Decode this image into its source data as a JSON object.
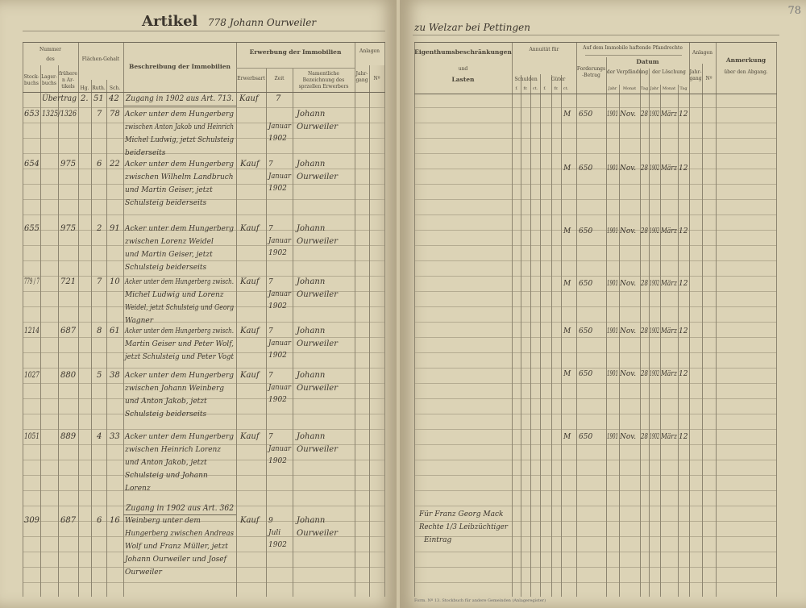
{
  "left_page": {
    "title_printed": "Artikel",
    "title_handwritten": "778 Johann Ourweiler",
    "headers": {
      "nummer": "Nummer",
      "des": "des",
      "stockbuchs": "Stock-buchs",
      "lagerbuchs": "Lager-buchs",
      "frueheren": "früheren Ar-tikels",
      "flaechen": "Flächen-Gehalt",
      "ha": "Hg.",
      "a": "Ruth.",
      "m": "Sch.",
      "beschreibung": "Beschreibung der Immobilien",
      "erwerbung": "Erwerbung der Immobilien",
      "erwerbsart": "Erwerbsart",
      "zeit": "Zeit",
      "namentliche": "Namentliche Bezeichnung des sprzellen Erwerbers",
      "anlagen": "Anlagen",
      "jahrgang": "Jahr-gang",
      "nr": "Nº"
    },
    "intro_line": {
      "lager": "Übertrag",
      "ha": "2.",
      "a": "51",
      "m": "42",
      "desc": "Zugang in 1902 aus Art. 713.",
      "art": "Kauf",
      "zeit": "7"
    },
    "entries": [
      {
        "stock": "653",
        "lager": "1325/1326",
        "ha": "7",
        "a": "78",
        "desc": [
          "Acker unter dem Hungerberg",
          "zwischen Anton Jakob und Heinrich",
          "Michel Ludwig, jetzt Schulsteig",
          "beiderseits"
        ],
        "zeit": [
          "Januar",
          "1902"
        ],
        "name": [
          "Johann",
          "Ourweiler"
        ]
      },
      {
        "stock": "654",
        "lager": "975",
        "ha": "6",
        "a": "22",
        "desc": [
          "Acker unter dem Hungerberg",
          "zwischen Wilhelm Landbruch",
          "und Martin Geiser, jetzt",
          "Schulsteig beiderseits"
        ],
        "art": "Kauf",
        "zeit": [
          "7",
          "Januar",
          "1902"
        ],
        "name": [
          "Johann",
          "Ourweiler"
        ]
      },
      {
        "stock": "655",
        "lager": "975",
        "ha": "2",
        "a": "91",
        "desc": [
          "Acker unter dem Hungerberg",
          "zwischen Lorenz Weidel",
          "und Martin Geiser, jetzt",
          "Schulsteig beiderseits"
        ],
        "art": "Kauf",
        "zeit": [
          "7",
          "Januar",
          "1902"
        ],
        "name": [
          "Johann",
          "Ourweiler"
        ]
      },
      {
        "stock": "779 / 7",
        "lager": "721",
        "ha": "7",
        "a": "10",
        "desc": [
          "Acker unter dem Hungerberg zwisch.",
          "Michel Ludwig und Lorenz",
          "Weidel, jetzt Schulsteig und Georg",
          "Wagner"
        ],
        "art": "Kauf",
        "zeit": [
          "7",
          "Januar",
          "1902"
        ],
        "name": [
          "Johann",
          "Ourweiler"
        ]
      },
      {
        "stock": "1214",
        "lager": "687",
        "ha": "8",
        "a": "61",
        "desc": [
          "Acker unter dem Hungerberg zwisch.",
          "Martin Geiser und Peter Wolf,",
          "jetzt Schulsteig und Peter Vogt"
        ],
        "art": "Kauf",
        "zeit": [
          "7",
          "Januar",
          "1902"
        ],
        "name": [
          "Johann",
          "Ourweiler"
        ]
      },
      {
        "stock": "1027",
        "lager": "880",
        "ha": "5",
        "a": "38",
        "desc": [
          "Acker unter dem Hungerberg",
          "zwischen Johann Weinberg",
          "und Anton Jakob, jetzt",
          "Schulsteig beiderseits"
        ],
        "art": "Kauf",
        "zeit": [
          "7",
          "Januar",
          "1902"
        ],
        "name": [
          "Johann",
          "Ourweiler"
        ]
      },
      {
        "stock": "1051",
        "lager": "889",
        "ha": "4",
        "a": "33",
        "desc": [
          "Acker unter dem Hungerberg",
          "zwischen Heinrich Lorenz",
          "und Anton Jakob, jetzt",
          "Schulsteig und Johann",
          "Lorenz"
        ],
        "art": "Kauf",
        "zeit": [
          "7",
          "Januar",
          "1902"
        ],
        "name": [
          "Johann",
          "Ourweiler"
        ]
      },
      {
        "pre": "Zugang in 1902 aus Art. 362",
        "stock": "309",
        "lager": "687",
        "ha": "6",
        "a": "16",
        "desc": [
          "Weinberg unter dem",
          "Hungerberg zwischen Andreas",
          "Wolf und Franz Müller, jetzt",
          "Johann Ourweiler und Josef",
          "Ourweiler"
        ],
        "art": "Kauf",
        "zeit": [
          "9",
          "Juli",
          "1902"
        ],
        "name": [
          "Johann",
          "Ourweiler"
        ]
      }
    ]
  },
  "right_page": {
    "page_number": "78",
    "title_handwritten": "zu Welzar bei Pettingen",
    "headers": {
      "eigenthum": "Eigenthumsbeschränkungen",
      "und": "und",
      "lasten": "Lasten",
      "annuitaet": "Annuität für",
      "schulden": "Schulden",
      "gueter": "Güter",
      "sub": [
        "f.",
        "fr.",
        "ct.",
        "f.",
        "fr.",
        "ct."
      ],
      "pfandrechte": "Auf dem Immobile haftende Pfandrechte",
      "forderung": "Forderungs-Betrag",
      "datum": "Datum",
      "verpfaendung": "der Verpfändung",
      "loeschung": "der Löschung",
      "jahr": "Jahr",
      "monat": "Monat",
      "tag": "Tag",
      "anlagen": "Anlagen",
      "jahrgang": "Jahr-gang",
      "nr": "Nº",
      "anmerkung": "Anmerkung",
      "ueber": "über den Abgang."
    },
    "mortgage_rows": [
      {
        "currency": "M",
        "amount": "650",
        "v_jahr": "1901",
        "v_monat": "Nov.",
        "v_tag": "28",
        "l_jahr": "1902",
        "l_monat": "März",
        "l_tag": "12"
      },
      {
        "currency": "M",
        "amount": "650",
        "v_jahr": "1901",
        "v_monat": "Nov.",
        "v_tag": "28",
        "l_jahr": "1902",
        "l_monat": "März",
        "l_tag": "12"
      },
      {
        "currency": "M",
        "amount": "650",
        "v_jahr": "1901",
        "v_monat": "Nov.",
        "v_tag": "28",
        "l_jahr": "1902",
        "l_monat": "März",
        "l_tag": "12"
      },
      {
        "currency": "M",
        "amount": "650",
        "v_jahr": "1901",
        "v_monat": "Nov.",
        "v_tag": "28",
        "l_jahr": "1902",
        "l_monat": "März",
        "l_tag": "12"
      },
      {
        "currency": "M",
        "amount": "650",
        "v_jahr": "1901",
        "v_monat": "Nov.",
        "v_tag": "28",
        "l_jahr": "1902",
        "l_monat": "März",
        "l_tag": "12"
      },
      {
        "currency": "M",
        "amount": "650",
        "v_jahr": "1901",
        "v_monat": "Nov.",
        "v_tag": "28",
        "l_jahr": "1902",
        "l_monat": "März",
        "l_tag": "12"
      },
      {
        "currency": "M",
        "amount": "650",
        "v_jahr": "1901",
        "v_monat": "Nov.",
        "v_tag": "28",
        "l_jahr": "1902",
        "l_monat": "März",
        "l_tag": "12"
      }
    ],
    "restriction_note": [
      "Für Franz Georg Mack",
      "Rechte 1/3 Leibzüchtiger",
      "Eintrag"
    ],
    "footer": "Form. Nº 13. Stockbuch für andere Gemeinden (Anlageregister)"
  }
}
